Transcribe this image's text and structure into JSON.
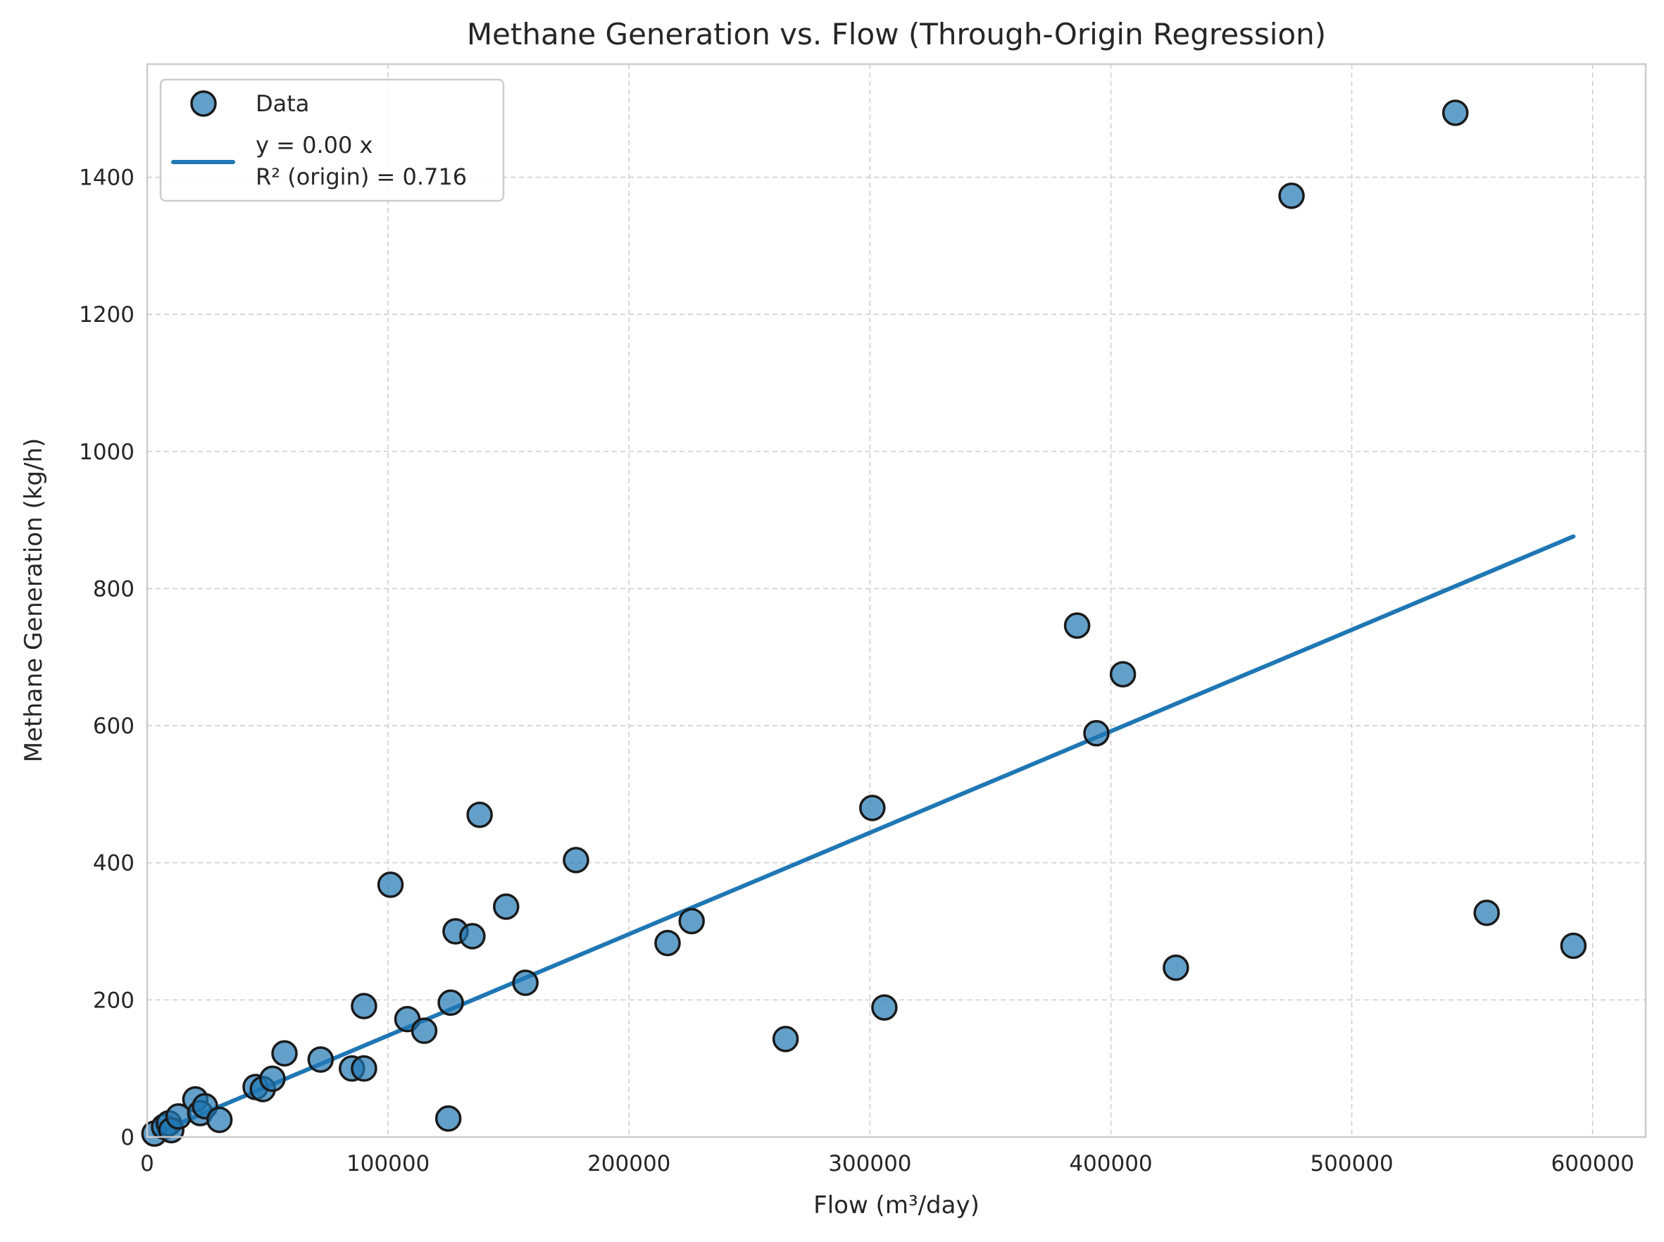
{
  "chart_data": {
    "type": "scatter",
    "title": "Methane Generation vs. Flow (Through-Origin Regression)",
    "xlabel": "Flow (m³/day)",
    "ylabel": "Methane Generation (kg/h)",
    "xlim": [
      0,
      622000
    ],
    "ylim": [
      0,
      1565
    ],
    "xticks": [
      0,
      100000,
      200000,
      300000,
      400000,
      500000,
      600000
    ],
    "yticks": [
      0,
      200,
      400,
      600,
      800,
      1000,
      1200,
      1400
    ],
    "grid": true,
    "legend_position": "top-left",
    "series": [
      {
        "name": "Data",
        "type": "scatter",
        "color": "#1f77b4",
        "points": [
          [
            3000,
            5
          ],
          [
            7000,
            15
          ],
          [
            9000,
            20
          ],
          [
            10000,
            10
          ],
          [
            13000,
            30
          ],
          [
            20000,
            55
          ],
          [
            22000,
            35
          ],
          [
            24000,
            45
          ],
          [
            30000,
            25
          ],
          [
            45000,
            73
          ],
          [
            48000,
            70
          ],
          [
            52000,
            85
          ],
          [
            57000,
            122
          ],
          [
            72000,
            113
          ],
          [
            85000,
            100
          ],
          [
            90000,
            100
          ],
          [
            90000,
            191
          ],
          [
            101000,
            368
          ],
          [
            108000,
            172
          ],
          [
            115000,
            155
          ],
          [
            125000,
            27
          ],
          [
            126000,
            196
          ],
          [
            128000,
            300
          ],
          [
            135000,
            293
          ],
          [
            138000,
            470
          ],
          [
            149000,
            336
          ],
          [
            157000,
            225
          ],
          [
            178000,
            404
          ],
          [
            216000,
            283
          ],
          [
            226000,
            315
          ],
          [
            265000,
            143
          ],
          [
            301000,
            480
          ],
          [
            306000,
            189
          ],
          [
            386000,
            746
          ],
          [
            394000,
            589
          ],
          [
            405000,
            675
          ],
          [
            427000,
            247
          ],
          [
            475000,
            1373
          ],
          [
            543000,
            1494
          ],
          [
            556000,
            327
          ],
          [
            592000,
            279
          ]
        ]
      },
      {
        "name": "y = 0.00 x\nR² (origin) = 0.716",
        "type": "line",
        "color": "#1f77b4",
        "x": [
          3000,
          592000
        ],
        "y": [
          4.44,
          876
        ]
      }
    ],
    "legend": {
      "entries": [
        {
          "marker": "circle",
          "line1": "Data"
        },
        {
          "marker": "line",
          "line1": "y = 0.00 x",
          "line2": "R² (origin) = 0.716"
        }
      ]
    }
  }
}
